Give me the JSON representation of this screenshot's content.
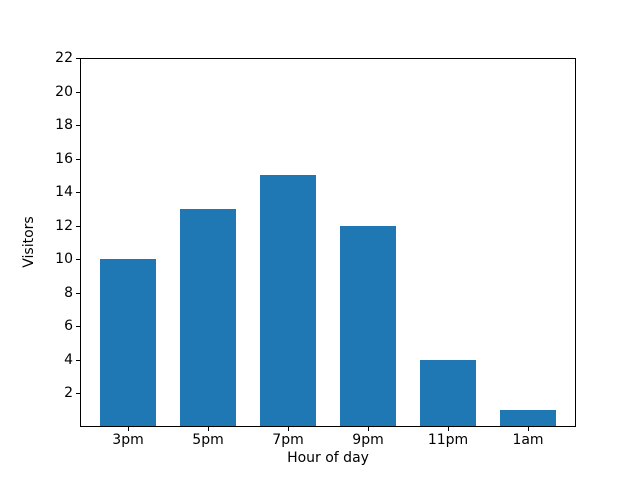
{
  "chart_data": {
    "type": "bar",
    "title": "",
    "xlabel": "Hour of day",
    "ylabel": "Visitors",
    "categories": [
      "3pm",
      "5pm",
      "7pm",
      "9pm",
      "11pm",
      "1am"
    ],
    "values": [
      10,
      13,
      15,
      12,
      4,
      1
    ],
    "ylim": [
      0,
      22
    ],
    "yticks": [
      2,
      4,
      6,
      8,
      10,
      12,
      14,
      16,
      18,
      20,
      22
    ],
    "grid": false,
    "legend": null,
    "colors": {
      "bar": "#1f77b4",
      "axis": "#000000",
      "text": "#000000",
      "background": "#ffffff"
    }
  }
}
